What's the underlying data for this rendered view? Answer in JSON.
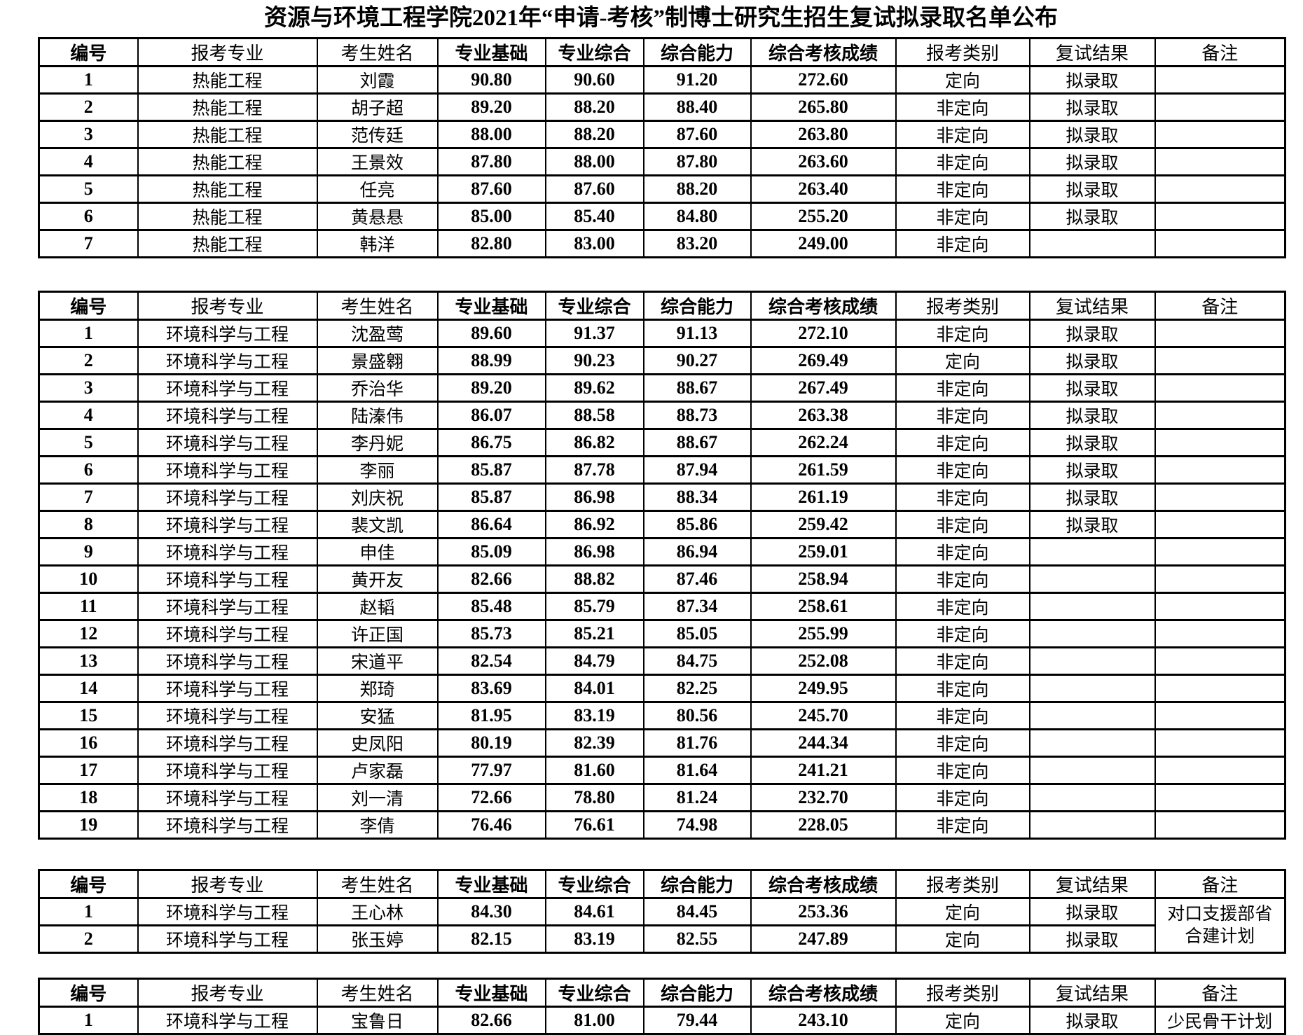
{
  "page": {
    "title": "资源与环境工程学院2021年“申请-考核”制博士研究生招生复试拟录取名单公布"
  },
  "columns": {
    "headers": [
      "编号",
      "报考专业",
      "考生姓名",
      "专业基础",
      "专业综合",
      "综合能力",
      "综合考核成绩",
      "报考类别",
      "复试结果",
      "备注"
    ],
    "bold_columns": [
      0,
      3,
      4,
      5,
      6
    ]
  },
  "tables": [
    {
      "label": "thermal-engineering-list",
      "rows": [
        [
          "1",
          "热能工程",
          "刘霞",
          "90.80",
          "90.60",
          "91.20",
          "272.60",
          "定向",
          "拟录取",
          ""
        ],
        [
          "2",
          "热能工程",
          "胡子超",
          "89.20",
          "88.20",
          "88.40",
          "265.80",
          "非定向",
          "拟录取",
          ""
        ],
        [
          "3",
          "热能工程",
          "范传廷",
          "88.00",
          "88.20",
          "87.60",
          "263.80",
          "非定向",
          "拟录取",
          ""
        ],
        [
          "4",
          "热能工程",
          "王景效",
          "87.80",
          "88.00",
          "87.80",
          "263.60",
          "非定向",
          "拟录取",
          ""
        ],
        [
          "5",
          "热能工程",
          "任亮",
          "87.60",
          "87.60",
          "88.20",
          "263.40",
          "非定向",
          "拟录取",
          ""
        ],
        [
          "6",
          "热能工程",
          "黄悬悬",
          "85.00",
          "85.40",
          "84.80",
          "255.20",
          "非定向",
          "拟录取",
          ""
        ],
        [
          "7",
          "热能工程",
          "韩洋",
          "82.80",
          "83.00",
          "83.20",
          "249.00",
          "非定向",
          "",
          ""
        ]
      ]
    },
    {
      "label": "environmental-science-list",
      "rows": [
        [
          "1",
          "环境科学与工程",
          "沈盈莺",
          "89.60",
          "91.37",
          "91.13",
          "272.10",
          "非定向",
          "拟录取",
          ""
        ],
        [
          "2",
          "环境科学与工程",
          "景盛翱",
          "88.99",
          "90.23",
          "90.27",
          "269.49",
          "定向",
          "拟录取",
          ""
        ],
        [
          "3",
          "环境科学与工程",
          "乔治华",
          "89.20",
          "89.62",
          "88.67",
          "267.49",
          "非定向",
          "拟录取",
          ""
        ],
        [
          "4",
          "环境科学与工程",
          "陆溱伟",
          "86.07",
          "88.58",
          "88.73",
          "263.38",
          "非定向",
          "拟录取",
          ""
        ],
        [
          "5",
          "环境科学与工程",
          "李丹妮",
          "86.75",
          "86.82",
          "88.67",
          "262.24",
          "非定向",
          "拟录取",
          ""
        ],
        [
          "6",
          "环境科学与工程",
          "李丽",
          "85.87",
          "87.78",
          "87.94",
          "261.59",
          "非定向",
          "拟录取",
          ""
        ],
        [
          "7",
          "环境科学与工程",
          "刘庆祝",
          "85.87",
          "86.98",
          "88.34",
          "261.19",
          "非定向",
          "拟录取",
          ""
        ],
        [
          "8",
          "环境科学与工程",
          "裴文凯",
          "86.64",
          "86.92",
          "85.86",
          "259.42",
          "非定向",
          "拟录取",
          ""
        ],
        [
          "9",
          "环境科学与工程",
          "申佳",
          "85.09",
          "86.98",
          "86.94",
          "259.01",
          "非定向",
          "",
          ""
        ],
        [
          "10",
          "环境科学与工程",
          "黄开友",
          "82.66",
          "88.82",
          "87.46",
          "258.94",
          "非定向",
          "",
          ""
        ],
        [
          "11",
          "环境科学与工程",
          "赵韬",
          "85.48",
          "85.79",
          "87.34",
          "258.61",
          "非定向",
          "",
          ""
        ],
        [
          "12",
          "环境科学与工程",
          "许正国",
          "85.73",
          "85.21",
          "85.05",
          "255.99",
          "非定向",
          "",
          ""
        ],
        [
          "13",
          "环境科学与工程",
          "宋道平",
          "82.54",
          "84.79",
          "84.75",
          "252.08",
          "非定向",
          "",
          ""
        ],
        [
          "14",
          "环境科学与工程",
          "郑琦",
          "83.69",
          "84.01",
          "82.25",
          "249.95",
          "非定向",
          "",
          ""
        ],
        [
          "15",
          "环境科学与工程",
          "安猛",
          "81.95",
          "83.19",
          "80.56",
          "245.70",
          "非定向",
          "",
          ""
        ],
        [
          "16",
          "环境科学与工程",
          "史凤阳",
          "80.19",
          "82.39",
          "81.76",
          "244.34",
          "非定向",
          "",
          ""
        ],
        [
          "17",
          "环境科学与工程",
          "卢家磊",
          "77.97",
          "81.60",
          "81.64",
          "241.21",
          "非定向",
          "",
          ""
        ],
        [
          "18",
          "环境科学与工程",
          "刘一清",
          "72.66",
          "78.80",
          "81.24",
          "232.70",
          "非定向",
          "",
          ""
        ],
        [
          "19",
          "环境科学与工程",
          "李倩",
          "76.46",
          "76.61",
          "74.98",
          "228.05",
          "非定向",
          "",
          ""
        ]
      ]
    },
    {
      "label": "environmental-science-targeted-list",
      "merged_remark": "对口支援部省\n合建计划",
      "rows": [
        [
          "1",
          "环境科学与工程",
          "王心林",
          "84.30",
          "84.61",
          "84.45",
          "253.36",
          "定向",
          "拟录取"
        ],
        [
          "2",
          "环境科学与工程",
          "张玉婷",
          "82.15",
          "83.19",
          "82.55",
          "247.89",
          "定向",
          "拟录取"
        ]
      ]
    },
    {
      "label": "environmental-science-minority-list",
      "rows": [
        [
          "1",
          "环境科学与工程",
          "宝鲁日",
          "82.66",
          "81.00",
          "79.44",
          "243.10",
          "定向",
          "拟录取",
          "少民骨干计划"
        ]
      ]
    }
  ]
}
